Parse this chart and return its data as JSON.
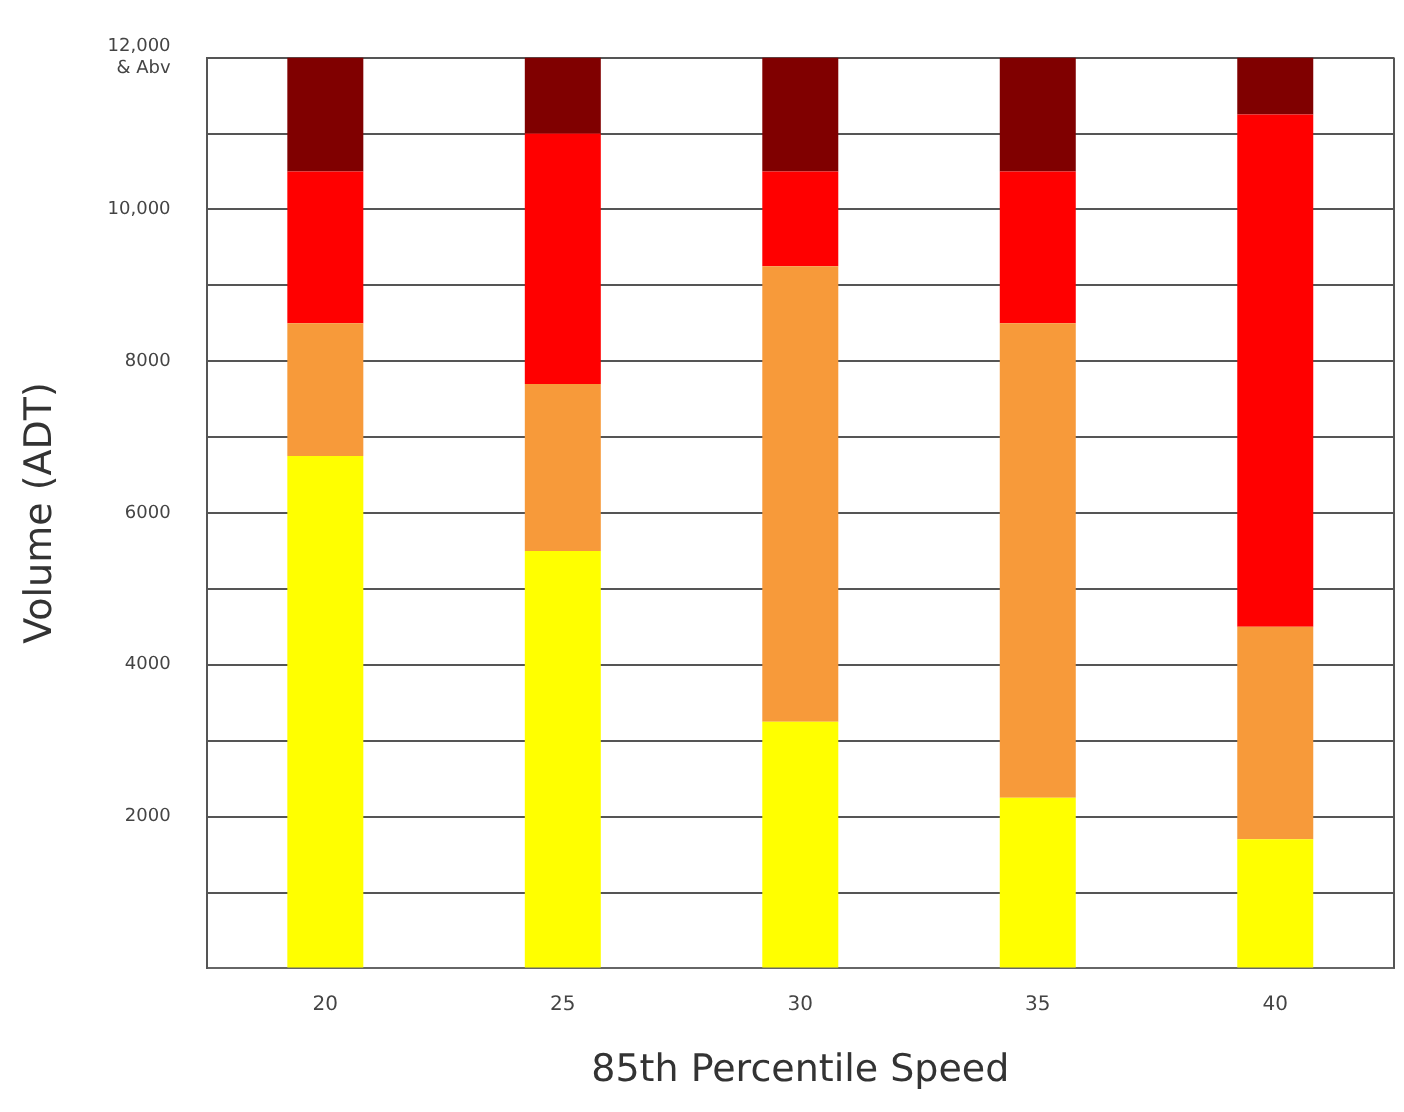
{
  "chart_data": {
    "type": "bar",
    "stacked": true,
    "xlabel": "85th Percentile Speed",
    "ylabel": "Volume (ADT)",
    "categories": [
      "20",
      "25",
      "30",
      "35",
      "40"
    ],
    "series": [
      {
        "color": "#ffff00",
        "values": [
          6750,
          5500,
          3250,
          2250,
          1700
        ]
      },
      {
        "color": "#f79a3a",
        "values": [
          1750,
          2200,
          6000,
          6250,
          2800
        ]
      },
      {
        "color": "#ff0000",
        "values": [
          2000,
          3300,
          1250,
          2000,
          6750
        ]
      },
      {
        "color": "#800000",
        "values": [
          1500,
          1000,
          1500,
          1500,
          750
        ]
      }
    ],
    "ylim": [
      0,
      12000
    ],
    "yticks": [
      {
        "value": 0,
        "label": null
      },
      {
        "value": 1000,
        "label": null
      },
      2000,
      {
        "value": 3000,
        "label": null
      },
      4000,
      {
        "value": 5000,
        "label": null
      },
      6000,
      {
        "value": 7000,
        "label": null
      },
      8000,
      {
        "value": 9000,
        "label": null
      },
      {
        "value": 10000,
        "label": "10,000"
      },
      {
        "value": 11000,
        "label": null
      },
      {
        "value": 12000,
        "label": "12,000\n& Abv"
      }
    ],
    "grid": "y",
    "legend": false
  }
}
